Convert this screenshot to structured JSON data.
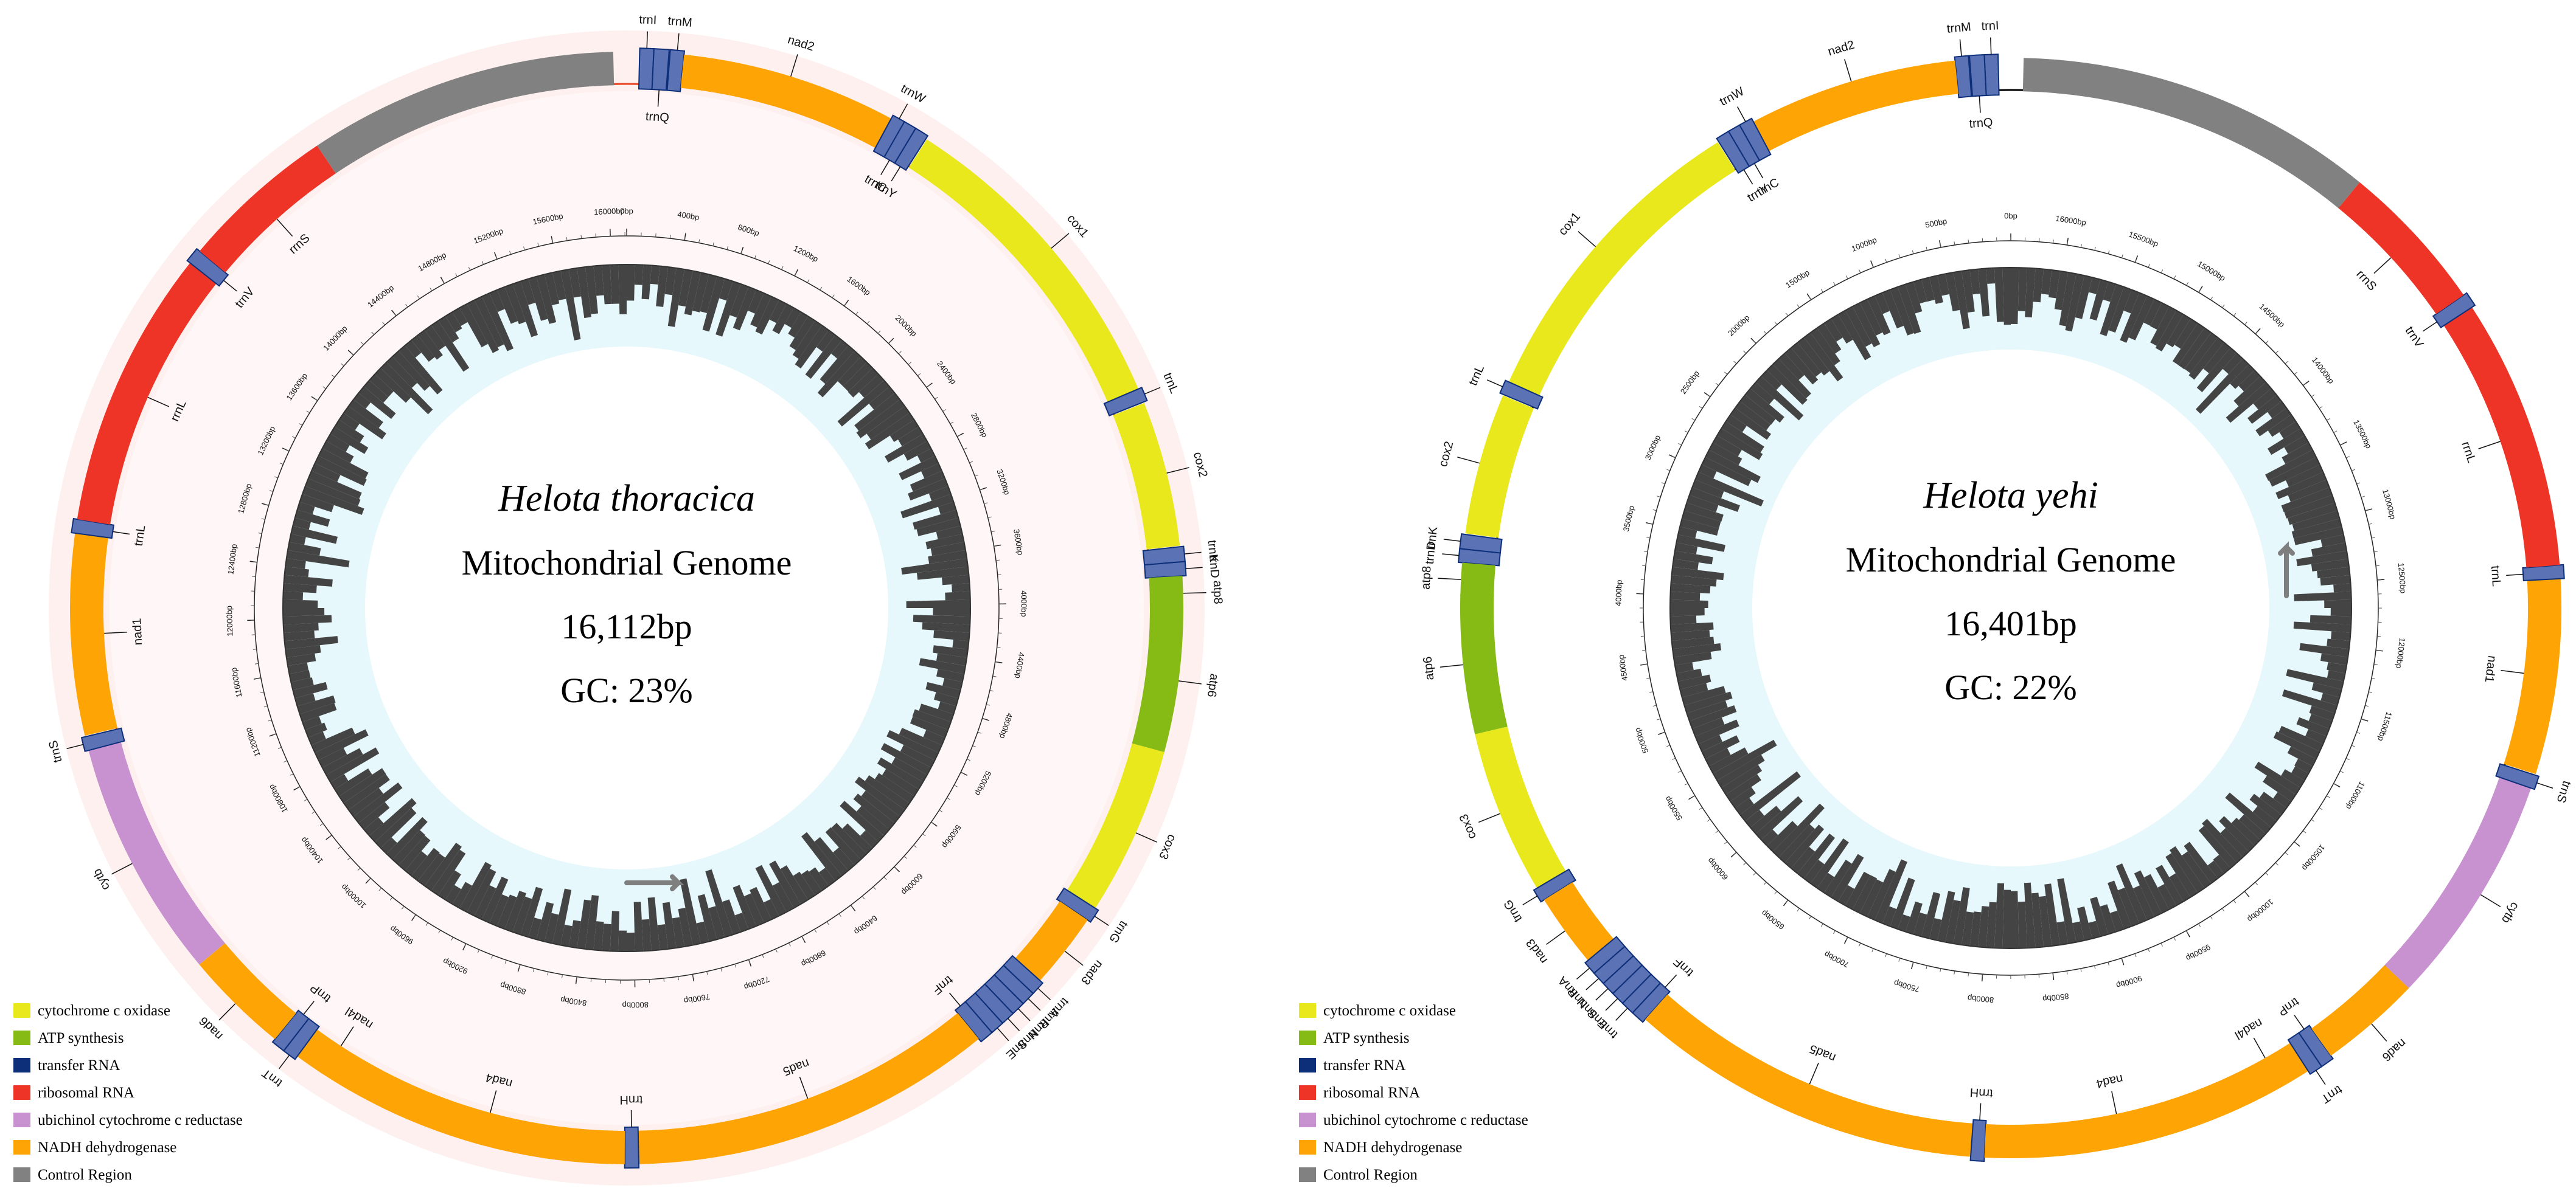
{
  "maps": [
    {
      "id": "left",
      "species": "Helota thoracica",
      "subtitle": "Mitochondrial Genome",
      "length_label": "16,112bp",
      "gc_label": "GC: 23%",
      "genome_length": 16112,
      "clockwise": true,
      "genes": [
        {
          "name": "trnI",
          "start": 60,
          "end": 125,
          "type": "trna",
          "strand": "+"
        },
        {
          "name": "trnQ",
          "start": 125,
          "end": 195,
          "type": "trna",
          "strand": "-"
        },
        {
          "name": "trnM",
          "start": 200,
          "end": 265,
          "type": "trna",
          "strand": "+"
        },
        {
          "name": "nad2",
          "start": 265,
          "end": 1270,
          "type": "nadh",
          "strand": "+"
        },
        {
          "name": "trnW",
          "start": 1270,
          "end": 1335,
          "type": "trna",
          "strand": "+"
        },
        {
          "name": "trnC",
          "start": 1330,
          "end": 1390,
          "type": "trna",
          "strand": "-"
        },
        {
          "name": "trnY",
          "start": 1390,
          "end": 1455,
          "type": "trna",
          "strand": "-"
        },
        {
          "name": "cox1",
          "start": 1460,
          "end": 2990,
          "type": "cox",
          "strand": "+"
        },
        {
          "name": "trnL",
          "start": 2990,
          "end": 3055,
          "type": "trna",
          "strand": "+"
        },
        {
          "name": "cox2",
          "start": 3060,
          "end": 3740,
          "type": "cox",
          "strand": "+"
        },
        {
          "name": "trnK",
          "start": 3745,
          "end": 3815,
          "type": "trna",
          "strand": "+"
        },
        {
          "name": "trnD",
          "start": 3815,
          "end": 3880,
          "type": "trna",
          "strand": "+"
        },
        {
          "name": "atp8",
          "start": 3880,
          "end": 4040,
          "type": "atp",
          "strand": "+"
        },
        {
          "name": "atp6",
          "start": 4030,
          "end": 4700,
          "type": "atp",
          "strand": "+"
        },
        {
          "name": "cox3",
          "start": 4700,
          "end": 5490,
          "type": "cox",
          "strand": "+"
        },
        {
          "name": "trnG",
          "start": 5490,
          "end": 5555,
          "type": "trna",
          "strand": "+"
        },
        {
          "name": "nad3",
          "start": 5555,
          "end": 5910,
          "type": "nadh",
          "strand": "+"
        },
        {
          "name": "trnA",
          "start": 5910,
          "end": 5975,
          "type": "trna",
          "strand": "+"
        },
        {
          "name": "trnR",
          "start": 5975,
          "end": 6040,
          "type": "trna",
          "strand": "+"
        },
        {
          "name": "trnN",
          "start": 6040,
          "end": 6105,
          "type": "trna",
          "strand": "+"
        },
        {
          "name": "trnS",
          "start": 6105,
          "end": 6170,
          "type": "trna",
          "strand": "+"
        },
        {
          "name": "trnE",
          "start": 6170,
          "end": 6235,
          "type": "trna",
          "strand": "+"
        },
        {
          "name": "trnF",
          "start": 6235,
          "end": 6300,
          "type": "trna",
          "strand": "-"
        },
        {
          "name": "nad5",
          "start": 6300,
          "end": 8000,
          "type": "nadh",
          "strand": "-"
        },
        {
          "name": "trnH",
          "start": 8000,
          "end": 8065,
          "type": "trna",
          "strand": "-"
        },
        {
          "name": "nad4",
          "start": 8065,
          "end": 9400,
          "type": "nadh",
          "strand": "-"
        },
        {
          "name": "nad4l",
          "start": 9395,
          "end": 9680,
          "type": "nadh",
          "strand": "-"
        },
        {
          "name": "trnT",
          "start": 9680,
          "end": 9745,
          "type": "trna",
          "strand": "+"
        },
        {
          "name": "trnP",
          "start": 9745,
          "end": 9810,
          "type": "trna",
          "strand": "-"
        },
        {
          "name": "nad6",
          "start": 9810,
          "end": 10300,
          "type": "nadh",
          "strand": "+"
        },
        {
          "name": "cytb",
          "start": 10300,
          "end": 11420,
          "type": "cytb",
          "strand": "+"
        },
        {
          "name": "trnS",
          "start": 11420,
          "end": 11485,
          "type": "trna",
          "strand": "+"
        },
        {
          "name": "nad1",
          "start": 11490,
          "end": 12430,
          "type": "nadh",
          "strand": "-"
        },
        {
          "name": "trnL",
          "start": 12430,
          "end": 12495,
          "type": "trna",
          "strand": "-"
        },
        {
          "name": "rrnL",
          "start": 12495,
          "end": 13800,
          "type": "rrna",
          "strand": "-"
        },
        {
          "name": "trnV",
          "start": 13800,
          "end": 13870,
          "type": "trna",
          "strand": "-"
        },
        {
          "name": "rrnS",
          "start": 13870,
          "end": 14600,
          "type": "rrna",
          "strand": "-"
        },
        {
          "name": "control",
          "start": 14600,
          "end": 16050,
          "type": "control",
          "strand": "-"
        }
      ],
      "tick_labels": [
        "0bp",
        "400bp",
        "800bp",
        "1200bp",
        "1600bp",
        "2000bp",
        "2400bp",
        "2800bp",
        "3200bp",
        "3600bp",
        "4000bp",
        "4400bp",
        "4800bp",
        "5200bp",
        "5600bp",
        "6000bp",
        "6400bp",
        "6800bp",
        "7200bp",
        "7600bp",
        "8000bp",
        "8400bp",
        "8800bp",
        "9200bp",
        "9600bp",
        "10000bp",
        "10400bp",
        "10800bp",
        "11200bp",
        "11600bp",
        "12000bp",
        "12400bp",
        "12800bp",
        "13200bp",
        "13600bp",
        "14000bp",
        "14400bp",
        "14800bp",
        "15200bp",
        "15600bp",
        "16000bp"
      ]
    },
    {
      "id": "right",
      "species": "Helota yehi",
      "subtitle": "Mitochondrial Genome",
      "length_label": "16,401bp",
      "gc_label": "GC: 22%",
      "genome_length": 16401,
      "clockwise": false,
      "genes": [
        {
          "name": "trnI",
          "start": 60,
          "end": 125,
          "type": "trna",
          "strand": "+"
        },
        {
          "name": "trnQ",
          "start": 125,
          "end": 195,
          "type": "trna",
          "strand": "-"
        },
        {
          "name": "trnM",
          "start": 200,
          "end": 265,
          "type": "trna",
          "strand": "+"
        },
        {
          "name": "nad2",
          "start": 265,
          "end": 1270,
          "type": "nadh",
          "strand": "+"
        },
        {
          "name": "trnW",
          "start": 1270,
          "end": 1335,
          "type": "trna",
          "strand": "+"
        },
        {
          "name": "trnC",
          "start": 1335,
          "end": 1395,
          "type": "trna",
          "strand": "-"
        },
        {
          "name": "trnY",
          "start": 1395,
          "end": 1460,
          "type": "trna",
          "strand": "-"
        },
        {
          "name": "cox1",
          "start": 1465,
          "end": 2995,
          "type": "cox",
          "strand": "+"
        },
        {
          "name": "trnL",
          "start": 2995,
          "end": 3060,
          "type": "trna",
          "strand": "+"
        },
        {
          "name": "cox2",
          "start": 3065,
          "end": 3745,
          "type": "cox",
          "strand": "+"
        },
        {
          "name": "trnK",
          "start": 3750,
          "end": 3820,
          "type": "trna",
          "strand": "+"
        },
        {
          "name": "trnD",
          "start": 3820,
          "end": 3885,
          "type": "trna",
          "strand": "+"
        },
        {
          "name": "atp8",
          "start": 3885,
          "end": 4045,
          "type": "atp",
          "strand": "+"
        },
        {
          "name": "atp6",
          "start": 4035,
          "end": 4705,
          "type": "atp",
          "strand": "+"
        },
        {
          "name": "cox3",
          "start": 4705,
          "end": 5495,
          "type": "cox",
          "strand": "+"
        },
        {
          "name": "trnG",
          "start": 5495,
          "end": 5560,
          "type": "trna",
          "strand": "+"
        },
        {
          "name": "nad3",
          "start": 5560,
          "end": 5915,
          "type": "nadh",
          "strand": "+"
        },
        {
          "name": "trnA",
          "start": 5915,
          "end": 5980,
          "type": "trna",
          "strand": "+"
        },
        {
          "name": "trnR",
          "start": 5980,
          "end": 6045,
          "type": "trna",
          "strand": "+"
        },
        {
          "name": "trnN",
          "start": 6045,
          "end": 6110,
          "type": "trna",
          "strand": "+"
        },
        {
          "name": "trnS",
          "start": 6110,
          "end": 6175,
          "type": "trna",
          "strand": "+"
        },
        {
          "name": "trnE",
          "start": 6175,
          "end": 6240,
          "type": "trna",
          "strand": "+"
        },
        {
          "name": "trnF",
          "start": 6240,
          "end": 6305,
          "type": "trna",
          "strand": "-"
        },
        {
          "name": "nad5",
          "start": 6305,
          "end": 8010,
          "type": "nadh",
          "strand": "-"
        },
        {
          "name": "trnH",
          "start": 8010,
          "end": 8075,
          "type": "trna",
          "strand": "-"
        },
        {
          "name": "nad4",
          "start": 8075,
          "end": 9400,
          "type": "nadh",
          "strand": "-"
        },
        {
          "name": "nad4l",
          "start": 9395,
          "end": 9690,
          "type": "nadh",
          "strand": "-"
        },
        {
          "name": "trnT",
          "start": 9690,
          "end": 9755,
          "type": "trna",
          "strand": "+"
        },
        {
          "name": "trnP",
          "start": 9755,
          "end": 9820,
          "type": "trna",
          "strand": "-"
        },
        {
          "name": "nad6",
          "start": 9820,
          "end": 10310,
          "type": "nadh",
          "strand": "+"
        },
        {
          "name": "cytb",
          "start": 10310,
          "end": 11430,
          "type": "cytb",
          "strand": "+"
        },
        {
          "name": "trnS",
          "start": 11430,
          "end": 11495,
          "type": "trna",
          "strand": "+"
        },
        {
          "name": "nad1",
          "start": 11500,
          "end": 12440,
          "type": "nadh",
          "strand": "-"
        },
        {
          "name": "trnL",
          "start": 12440,
          "end": 12505,
          "type": "trna",
          "strand": "-"
        },
        {
          "name": "rrnL",
          "start": 12505,
          "end": 13810,
          "type": "rrna",
          "strand": "-"
        },
        {
          "name": "trnV",
          "start": 13810,
          "end": 13880,
          "type": "trna",
          "strand": "-"
        },
        {
          "name": "rrnS",
          "start": 13880,
          "end": 14610,
          "type": "rrna",
          "strand": "-"
        },
        {
          "name": "control",
          "start": 14610,
          "end": 16340,
          "type": "control",
          "strand": "-"
        }
      ],
      "tick_labels": [
        "0bp",
        "500bp",
        "1000bp",
        "1500bp",
        "2000bp",
        "2500bp",
        "3000bp",
        "3500bp",
        "4000bp",
        "4500bp",
        "5000bp",
        "5500bp",
        "6000bp",
        "6500bp",
        "7000bp",
        "7500bp",
        "8000bp",
        "8500bp",
        "9000bp",
        "9500bp",
        "10000bp",
        "10500bp",
        "11000bp",
        "11500bp",
        "12000bp",
        "12500bp",
        "13000bp",
        "13500bp",
        "14000bp",
        "14500bp",
        "15000bp",
        "15500bp",
        "16000bp"
      ]
    }
  ],
  "legend": [
    {
      "key": "cox",
      "label": "cytochrome c oxidase",
      "color": "#e8e81c"
    },
    {
      "key": "atp",
      "label": "ATP synthesis",
      "color": "#85bb14"
    },
    {
      "key": "trna",
      "label": "transfer RNA",
      "color": "#0d2f7a"
    },
    {
      "key": "rrna",
      "label": "ribosomal RNA",
      "color": "#ee3426"
    },
    {
      "key": "cytb",
      "label": "ubichinol cytochrome c reductase",
      "color": "#c792cf"
    },
    {
      "key": "nadh",
      "label": "NADH dehydrogenase",
      "color": "#ffa405"
    },
    {
      "key": "control",
      "label": "Control Region",
      "color": "#818181"
    }
  ],
  "colors": {
    "trna_fill": "#5b72b5",
    "trna_core": "#0d2f7a",
    "gc_bar": "#444444",
    "gc_bg": "#e6f8fc",
    "left_halo": "#fff0f0",
    "left_backbone": "#e8421e",
    "right_backbone": "#000000",
    "arrow": "#7f7f7f"
  }
}
